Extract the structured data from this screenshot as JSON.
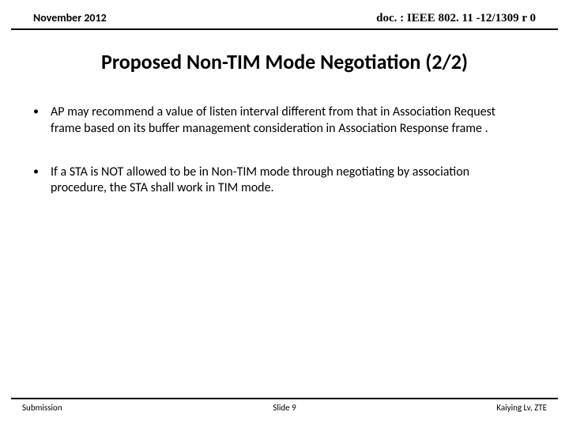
{
  "header": {
    "date": "November 2012",
    "docref": "doc. : IEEE 802. 11 -12/1309 r 0"
  },
  "title": "Proposed Non-TIM Mode Negotiation (2/2)",
  "bullets": [
    "AP may recommend a value of listen interval different from that in Association Request frame based on its buffer management consideration in Association Response frame .",
    "If a STA is NOT allowed to be in Non-TIM mode through negotiating by association procedure, the STA shall work in TIM mode."
  ],
  "footer": {
    "left": "Submission",
    "center": "Slide 9",
    "right": "Kaiying Lv, ZTE"
  }
}
